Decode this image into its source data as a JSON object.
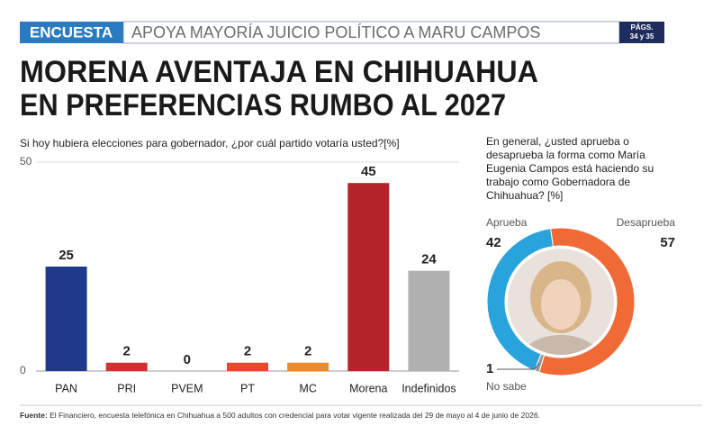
{
  "header": {
    "tag": "ENCUESTA",
    "title": "APOYA MAYORÍA JUICIO POLÍTICO A MARU CAMPOS",
    "pages": [
      "PÁGS.",
      "34 y 35"
    ]
  },
  "headline": [
    "MORENA AVENTAJA EN CHIHUAHUA",
    "EN PREFERENCIAS RUMBO AL 2027"
  ],
  "chart_data": [
    {
      "type": "bar",
      "subtitle": "Si hoy hubiera elecciones para gobernador, ¿por cuál partido votaría usted?[%]",
      "categories": [
        "PAN",
        "PRI",
        "PVEM",
        "PT",
        "MC",
        "Morena",
        "Indefinidos"
      ],
      "values": [
        25,
        2,
        0,
        2,
        2,
        45,
        24
      ],
      "colors": [
        "#1f3a8a",
        "#d32f2f",
        "#888888",
        "#e8492e",
        "#ef8a2c",
        "#b5232a",
        "#b0b0b0"
      ],
      "ylim": [
        0,
        50
      ],
      "yticks": [
        0,
        50
      ],
      "grid": true
    },
    {
      "type": "donut",
      "title": [
        "En general, ¿usted aprueba o",
        "desaprueba la forma como María",
        "Eugenia Campos está haciendo su",
        "trabajo como Gobernadora de",
        "Chihuahua? [%]"
      ],
      "categories": [
        "Aprueba",
        "Desaprueba",
        "No sabe"
      ],
      "values": [
        42,
        57,
        1
      ],
      "colors": [
        "#29a3dc",
        "#f06a35",
        "#9a9a9a"
      ]
    }
  ],
  "footer": {
    "label": "Fuente:",
    "text": " El Financiero, encuesta telefónica en Chihuahua a 500 adultos con credencial para votar vigente realizada del 29 de mayo al 4 de junio de 2026."
  }
}
